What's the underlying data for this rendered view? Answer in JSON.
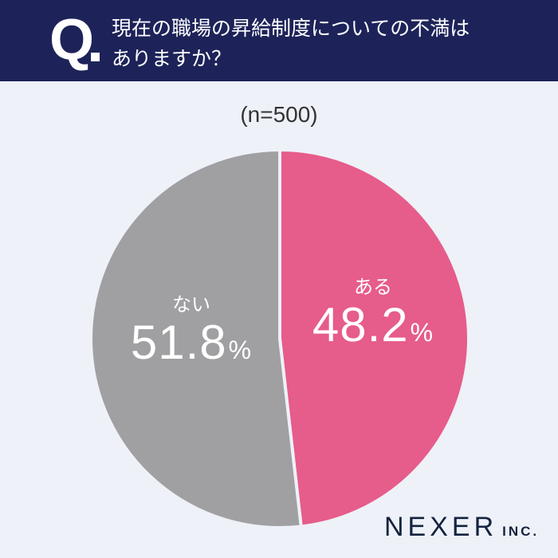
{
  "header": {
    "q_mark": "Q",
    "question": "現在の職場の昇給制度についての不満はありますか？",
    "question_line1": "現在の職場の昇給制度についての不満は",
    "question_line2": "ありますか？"
  },
  "sample_size": "(n=500)",
  "slices": [
    {
      "label": "ある",
      "value_text": "48.2",
      "pct_sign": "%",
      "color": "#e65c8a"
    },
    {
      "label": "ない",
      "value_text": "51.8",
      "pct_sign": "%",
      "color": "#a0a0a2"
    }
  ],
  "logo": {
    "name": "NEXER",
    "suffix": "INC."
  },
  "colors": {
    "header_bg": "#1d2359",
    "background": "#eef1f8",
    "yes": "#e65c8a",
    "no": "#a0a0a2"
  },
  "chart_data": {
    "type": "pie",
    "title": "現在の職場の昇給制度についての不満はありますか？",
    "subtitle": "(n=500)",
    "categories": [
      "ある",
      "ない"
    ],
    "values": [
      48.2,
      51.8
    ],
    "unit": "%",
    "colors": [
      "#e65c8a",
      "#a0a0a2"
    ],
    "start_angle": "12 o'clock, clockwise",
    "legend": "none (labels inside slices)"
  }
}
